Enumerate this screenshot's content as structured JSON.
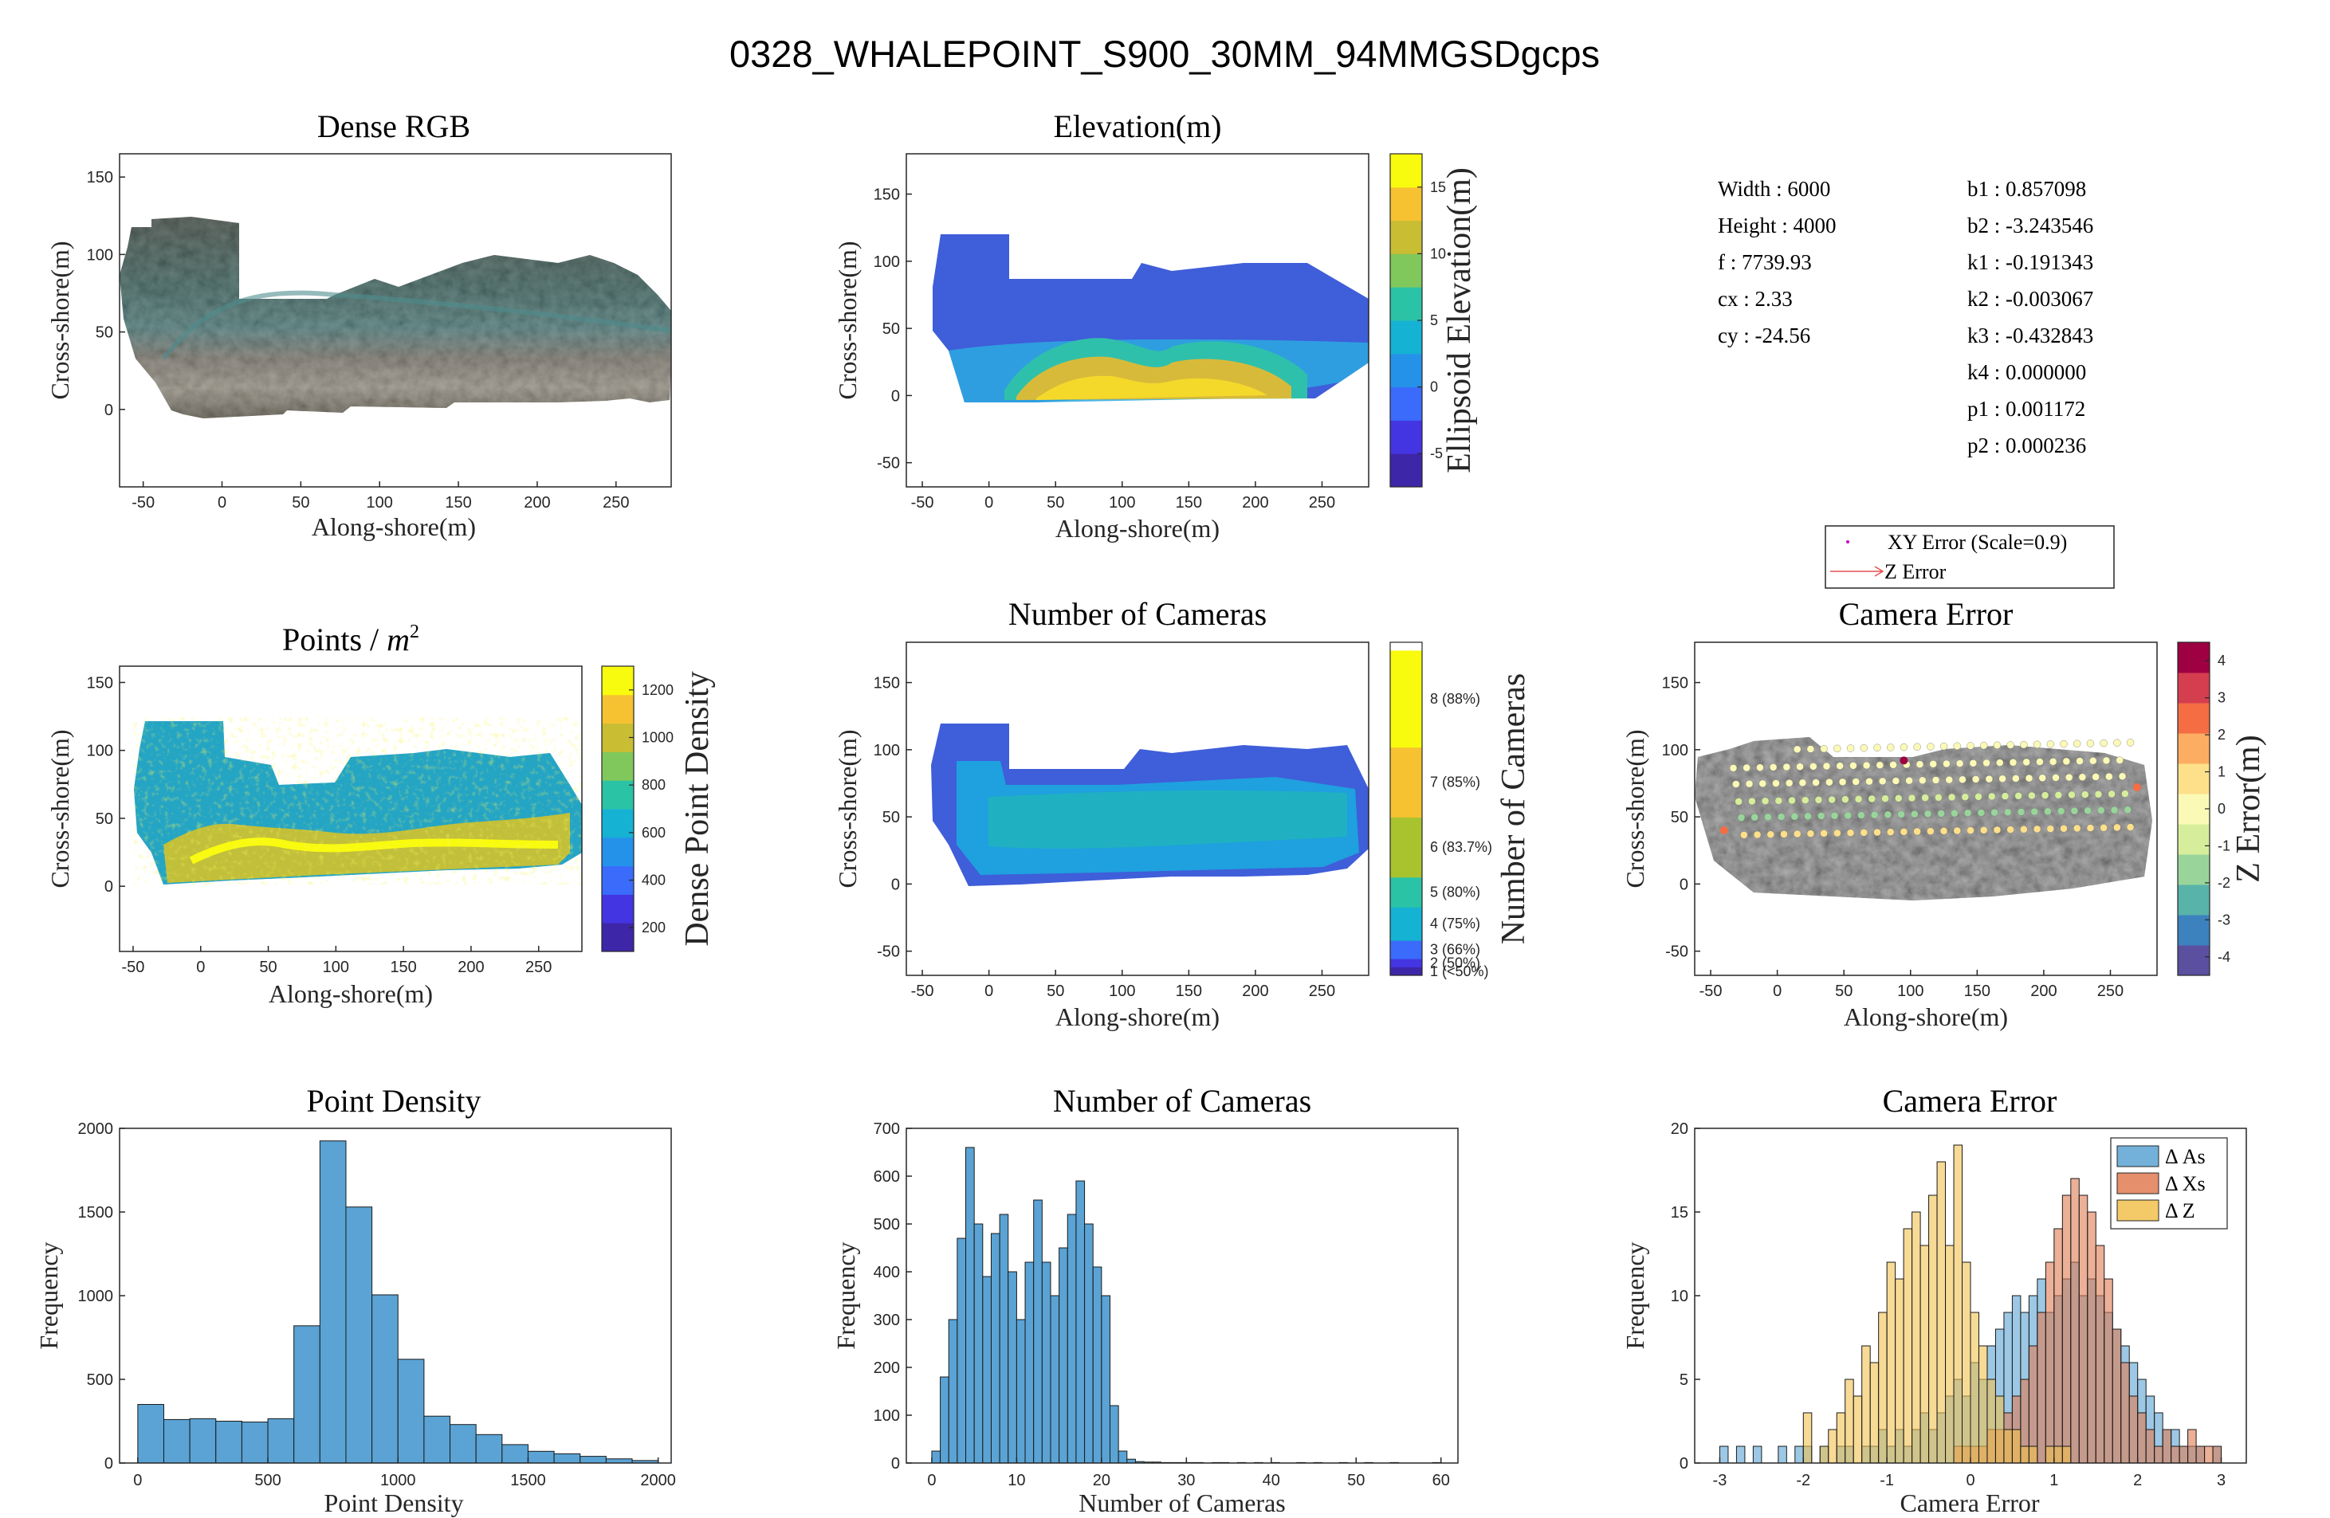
{
  "figure_title": "0328_WHALEPOINT_S900_30MM_94MMGSDgcps",
  "camera_params": {
    "left": [
      "Width : 6000",
      "Height : 4000",
      "f : 7739.93",
      "cx : 2.33",
      "cy : -24.56"
    ],
    "right": [
      "b1 : 0.857098",
      "b2 : -3.243546",
      "k1 : -0.191343",
      "k2 : -0.003067",
      "k3 : -0.432843",
      "k4 : 0.000000",
      "p1 : 0.001172",
      "p2 : 0.000236"
    ]
  },
  "error_legend": [
    "XY Error (Scale=0.9)",
    "Z Error"
  ],
  "colors": {
    "hist_blue": "#5aa3d4",
    "hist_orange": "#e07b52",
    "hist_yellow": "#f2c14e",
    "parula_low": "#3e26a8",
    "parula_high": "#f9fb0e"
  },
  "chart_data": [
    {
      "id": "dense-rgb",
      "type": "heatmap",
      "title": "Dense RGB",
      "xlabel": "Along-shore(m)",
      "ylabel": "Cross-shore(m)",
      "xlim": [
        -65,
        285
      ],
      "ylim": [
        -50,
        165
      ],
      "xticks": [
        -50,
        0,
        50,
        100,
        150,
        200,
        250
      ],
      "yticks": [
        0,
        50,
        100,
        150
      ]
    },
    {
      "id": "elevation",
      "type": "heatmap",
      "title": "Elevation(m)",
      "xlabel": "Along-shore(m)",
      "ylabel": "Cross-shore(m)",
      "xlim": [
        -62,
        285
      ],
      "ylim": [
        -68,
        180
      ],
      "xticks": [
        -50,
        0,
        50,
        100,
        150,
        200,
        250
      ],
      "yticks": [
        -50,
        0,
        50,
        100,
        150
      ],
      "colorbar": {
        "label": "Ellipsoid Elevation(m)",
        "range": [
          -7.5,
          17.5
        ],
        "ticks": [
          -5,
          0,
          5,
          10,
          15
        ]
      }
    },
    {
      "id": "points-m2",
      "type": "heatmap",
      "title": "Points / ",
      "title_unit": "m",
      "title_exp": "2",
      "xlabel": "Along-shore(m)",
      "ylabel": "Cross-shore(m)",
      "xlim": [
        -60,
        282
      ],
      "ylim": [
        -48,
        162
      ],
      "xticks": [
        -50,
        0,
        50,
        100,
        150,
        200,
        250
      ],
      "yticks": [
        0,
        50,
        100,
        150
      ],
      "colorbar": {
        "label": "Dense Point Density",
        "range": [
          100,
          1300
        ],
        "ticks": [
          200,
          400,
          600,
          800,
          1000,
          1200
        ]
      }
    },
    {
      "id": "cameras-map",
      "type": "heatmap",
      "title": "Number of Cameras",
      "xlabel": "Along-shore(m)",
      "ylabel": "Cross-shore(m)",
      "xlim": [
        -62,
        285
      ],
      "ylim": [
        -68,
        180
      ],
      "xticks": [
        -50,
        0,
        50,
        100,
        150,
        200,
        250
      ],
      "yticks": [
        -50,
        0,
        50,
        100,
        150
      ],
      "colorbar": {
        "label": "Number of Cameras",
        "labels": [
          "1 (<50%)",
          "2 (50%)",
          "3 (66%)",
          "4 (75%)",
          "5 (80%)",
          "6 (83.7%)",
          "7 (85%)",
          "8 (88%)"
        ]
      }
    },
    {
      "id": "camera-error-map",
      "type": "scatter",
      "title": "Camera Error",
      "xlabel": "Along-shore(m)",
      "ylabel": "Cross-shore(m)",
      "xlim": [
        -62,
        285
      ],
      "ylim": [
        -68,
        180
      ],
      "xticks": [
        -50,
        0,
        50,
        100,
        150,
        200,
        250
      ],
      "yticks": [
        -50,
        0,
        50,
        100,
        150
      ],
      "colorbar": {
        "label": "Z Error(m)",
        "range": [
          -4.5,
          4.5
        ],
        "ticks": [
          -4,
          -3,
          -2,
          -1,
          0,
          1,
          2,
          3,
          4
        ]
      }
    },
    {
      "id": "point-density-hist",
      "type": "bar",
      "title": "Point Density",
      "xlabel": "Point Density",
      "ylabel": "Frequency",
      "xlim": [
        -70,
        2050
      ],
      "ylim": [
        0,
        2000
      ],
      "xticks": [
        0,
        500,
        1000,
        1500,
        2000
      ],
      "yticks": [
        0,
        500,
        1000,
        1500,
        2000
      ],
      "bin_start": 0,
      "bin_width": 100,
      "values": [
        350,
        260,
        265,
        250,
        245,
        265,
        820,
        1925,
        1530,
        1005,
        620,
        280,
        230,
        170,
        110,
        70,
        55,
        40,
        25,
        15
      ]
    },
    {
      "id": "num-cameras-hist",
      "type": "bar",
      "title": "Number of Cameras",
      "xlabel": "Number of Cameras",
      "ylabel": "Frequency",
      "xlim": [
        -3,
        62
      ],
      "ylim": [
        0,
        700
      ],
      "xticks": [
        0,
        10,
        20,
        30,
        40,
        50,
        60
      ],
      "yticks": [
        0,
        100,
        200,
        300,
        400,
        500,
        600,
        700
      ],
      "bin_start": 0,
      "bin_width": 1,
      "values": [
        25,
        180,
        300,
        470,
        660,
        500,
        390,
        480,
        520,
        400,
        300,
        420,
        550,
        420,
        350,
        450,
        520,
        590,
        500,
        410,
        350,
        120,
        25,
        8,
        3,
        2,
        2,
        1,
        1,
        1,
        1,
        1,
        0,
        1,
        1,
        0,
        1,
        0,
        1,
        0,
        1,
        0,
        0,
        1,
        0,
        1,
        0,
        0,
        1,
        0,
        0,
        1,
        0,
        0,
        1,
        0,
        0,
        0,
        0,
        1
      ]
    },
    {
      "id": "camera-error-hist",
      "type": "bar",
      "title": "Camera Error",
      "xlabel": "Camera Error",
      "ylabel": "Frequency",
      "xlim": [
        -3.3,
        3.3
      ],
      "ylim": [
        0,
        20
      ],
      "xticks": [
        -3,
        -2,
        -1,
        0,
        1,
        2,
        3
      ],
      "yticks": [
        0,
        5,
        10,
        15,
        20
      ],
      "bin_start": -3.0,
      "bin_width": 0.1,
      "categories_note": "",
      "series": [
        {
          "name": "Δ As",
          "values": [
            1,
            0,
            1,
            0,
            1,
            0,
            0,
            1,
            0,
            1,
            1,
            0,
            1,
            0,
            1,
            1,
            0,
            1,
            1,
            2,
            1,
            2,
            1,
            2,
            3,
            2,
            3,
            4,
            5,
            4,
            6,
            5,
            7,
            8,
            9,
            10,
            9,
            10,
            11,
            9,
            10,
            11,
            12,
            10,
            11,
            10,
            9,
            8,
            7,
            6,
            5,
            4,
            3,
            2,
            2,
            1,
            1,
            1,
            0,
            1
          ]
        },
        {
          "name": "Δ Xs",
          "values": [
            0,
            0,
            0,
            0,
            0,
            0,
            0,
            0,
            0,
            0,
            0,
            0,
            0,
            0,
            0,
            0,
            0,
            0,
            0,
            0,
            0,
            0,
            0,
            0,
            0,
            0,
            0,
            0,
            1,
            1,
            1,
            1,
            2,
            2,
            3,
            4,
            5,
            7,
            9,
            12,
            14,
            16,
            17,
            16,
            15,
            13,
            11,
            8,
            6,
            4,
            3,
            2,
            1,
            2,
            1,
            1,
            2,
            1,
            1,
            1
          ]
        },
        {
          "name": "Δ Z",
          "values": [
            0,
            0,
            0,
            0,
            0,
            0,
            0,
            0,
            0,
            0,
            3,
            0,
            1,
            2,
            3,
            5,
            4,
            7,
            6,
            9,
            12,
            11,
            14,
            15,
            13,
            16,
            18,
            13,
            19,
            12,
            9,
            7,
            5,
            4,
            2,
            2,
            1,
            1,
            0,
            1,
            1,
            1,
            0,
            0,
            0,
            0,
            0,
            0,
            0,
            0,
            0,
            0,
            0,
            0,
            0,
            0,
            0,
            0,
            0,
            0
          ]
        }
      ]
    }
  ]
}
